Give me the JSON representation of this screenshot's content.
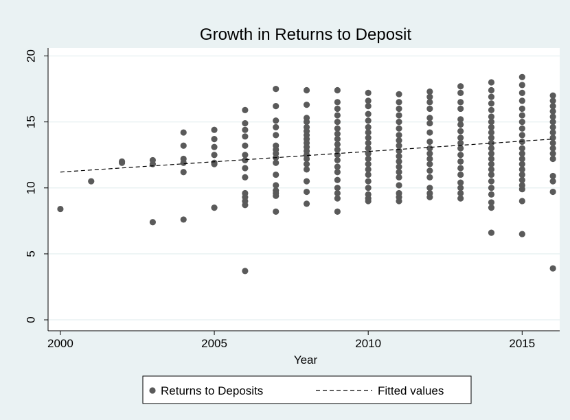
{
  "chart_data": {
    "type": "scatter",
    "title": "Growth in Returns to Deposit",
    "x_label": "Year",
    "xlim": [
      1999.6,
      2016.22
    ],
    "ylim": [
      -0.83,
      20.6
    ],
    "xticks": [
      2000,
      2005,
      2010,
      2015
    ],
    "yticks": [
      0,
      5,
      10,
      15,
      20
    ],
    "grid": true,
    "legend": "bottom",
    "series": [
      {
        "name": "Returns to Deposits",
        "type": "scatter",
        "color": "#5a5a5a",
        "x": [
          2000,
          2001,
          2002,
          2002,
          2003,
          2003,
          2003,
          2004,
          2004,
          2004,
          2004,
          2004,
          2004,
          2005,
          2005,
          2005,
          2005,
          2005,
          2005,
          2005,
          2006,
          2006,
          2006,
          2006,
          2006,
          2006,
          2006,
          2006,
          2006,
          2006,
          2006,
          2006,
          2006,
          2006,
          2007,
          2007,
          2007,
          2007,
          2007,
          2007,
          2007,
          2007,
          2007,
          2007,
          2007,
          2007,
          2007,
          2007,
          2007,
          2007,
          2008,
          2008,
          2008,
          2008,
          2008,
          2008,
          2008,
          2008,
          2008,
          2008,
          2008,
          2008,
          2008,
          2008,
          2008,
          2008,
          2008,
          2008,
          2009,
          2009,
          2009,
          2009,
          2009,
          2009,
          2009,
          2009,
          2009,
          2009,
          2009,
          2009,
          2009,
          2009,
          2009,
          2009,
          2009,
          2009,
          2009,
          2010,
          2010,
          2010,
          2010,
          2010,
          2010,
          2010,
          2010,
          2010,
          2010,
          2010,
          2010,
          2010,
          2010,
          2010,
          2010,
          2010,
          2010,
          2010,
          2010,
          2011,
          2011,
          2011,
          2011,
          2011,
          2011,
          2011,
          2011,
          2011,
          2011,
          2011,
          2011,
          2011,
          2011,
          2011,
          2011,
          2011,
          2011,
          2011,
          2012,
          2012,
          2012,
          2012,
          2012,
          2012,
          2012,
          2012,
          2012,
          2012,
          2012,
          2012,
          2012,
          2012,
          2012,
          2012,
          2012,
          2013,
          2013,
          2013,
          2013,
          2013,
          2013,
          2013,
          2013,
          2013,
          2013,
          2013,
          2013,
          2013,
          2013,
          2013,
          2013,
          2013,
          2013,
          2014,
          2014,
          2014,
          2014,
          2014,
          2014,
          2014,
          2014,
          2014,
          2014,
          2014,
          2014,
          2014,
          2014,
          2014,
          2014,
          2014,
          2014,
          2014,
          2014,
          2014,
          2014,
          2014,
          2015,
          2015,
          2015,
          2015,
          2015,
          2015,
          2015,
          2015,
          2015,
          2015,
          2015,
          2015,
          2015,
          2015,
          2015,
          2015,
          2015,
          2015,
          2015,
          2015,
          2015,
          2016,
          2016,
          2016,
          2016,
          2016,
          2016,
          2016,
          2016,
          2016,
          2016,
          2016,
          2016,
          2016,
          2016,
          2016,
          2016,
          2016
        ],
        "values": [
          8.4,
          10.5,
          12.0,
          11.9,
          12.1,
          11.8,
          7.4,
          14.2,
          13.2,
          12.2,
          11.9,
          11.2,
          7.6,
          14.4,
          13.7,
          13.1,
          12.5,
          11.9,
          11.8,
          8.5,
          15.9,
          14.9,
          14.4,
          13.9,
          13.2,
          12.5,
          12.1,
          11.5,
          10.8,
          9.6,
          9.3,
          9.0,
          8.7,
          3.7,
          17.5,
          16.2,
          15.1,
          14.6,
          14.0,
          13.2,
          12.9,
          12.6,
          12.3,
          11.9,
          11.0,
          10.2,
          9.8,
          9.6,
          9.4,
          8.2,
          17.4,
          16.3,
          15.3,
          15.0,
          14.6,
          14.3,
          14.0,
          13.7,
          13.4,
          13.1,
          12.8,
          12.5,
          12.2,
          11.8,
          11.4,
          10.5,
          9.7,
          8.8,
          17.4,
          16.5,
          16.0,
          15.5,
          15.0,
          14.5,
          14.1,
          13.7,
          13.3,
          12.9,
          12.5,
          12.1,
          11.6,
          11.2,
          10.6,
          10.0,
          9.6,
          9.2,
          8.2,
          17.2,
          16.6,
          16.2,
          15.6,
          15.1,
          14.6,
          14.2,
          13.8,
          13.4,
          13.0,
          12.6,
          12.2,
          11.8,
          11.4,
          11.0,
          10.5,
          10.0,
          9.5,
          9.2,
          9.0,
          17.1,
          16.5,
          16.0,
          15.5,
          15.0,
          14.5,
          14.0,
          13.6,
          13.2,
          12.8,
          12.4,
          12.0,
          11.6,
          11.2,
          10.8,
          10.2,
          9.6,
          9.3,
          9.0,
          17.3,
          16.9,
          16.5,
          16.0,
          15.3,
          14.9,
          14.2,
          13.5,
          13.0,
          12.6,
          12.2,
          11.8,
          11.3,
          10.8,
          10.0,
          9.6,
          9.3,
          17.7,
          17.2,
          16.5,
          16.0,
          15.2,
          14.8,
          14.3,
          13.8,
          13.4,
          13.0,
          12.5,
          12.0,
          11.5,
          11.0,
          10.4,
          10.0,
          9.6,
          9.2,
          18.0,
          17.4,
          16.9,
          16.4,
          15.9,
          15.4,
          15.0,
          14.6,
          14.2,
          13.8,
          13.4,
          13.0,
          12.6,
          12.2,
          11.8,
          11.4,
          11.0,
          10.5,
          10.0,
          9.5,
          8.9,
          8.5,
          6.6,
          18.4,
          17.8,
          17.2,
          16.6,
          16.0,
          15.5,
          15.0,
          14.5,
          14.0,
          13.5,
          13.0,
          12.6,
          12.2,
          11.8,
          11.4,
          11.0,
          10.6,
          10.2,
          9.9,
          9.0,
          6.5,
          17.0,
          16.6,
          16.2,
          15.8,
          15.4,
          15.0,
          14.6,
          14.2,
          13.8,
          13.4,
          13.0,
          12.6,
          12.2,
          10.9,
          10.5,
          9.7,
          3.9
        ]
      },
      {
        "name": "Fitted values",
        "type": "line",
        "dashed": true,
        "color": "#000000",
        "x": [
          2000,
          2016
        ],
        "values": [
          11.2,
          13.7
        ]
      }
    ]
  }
}
